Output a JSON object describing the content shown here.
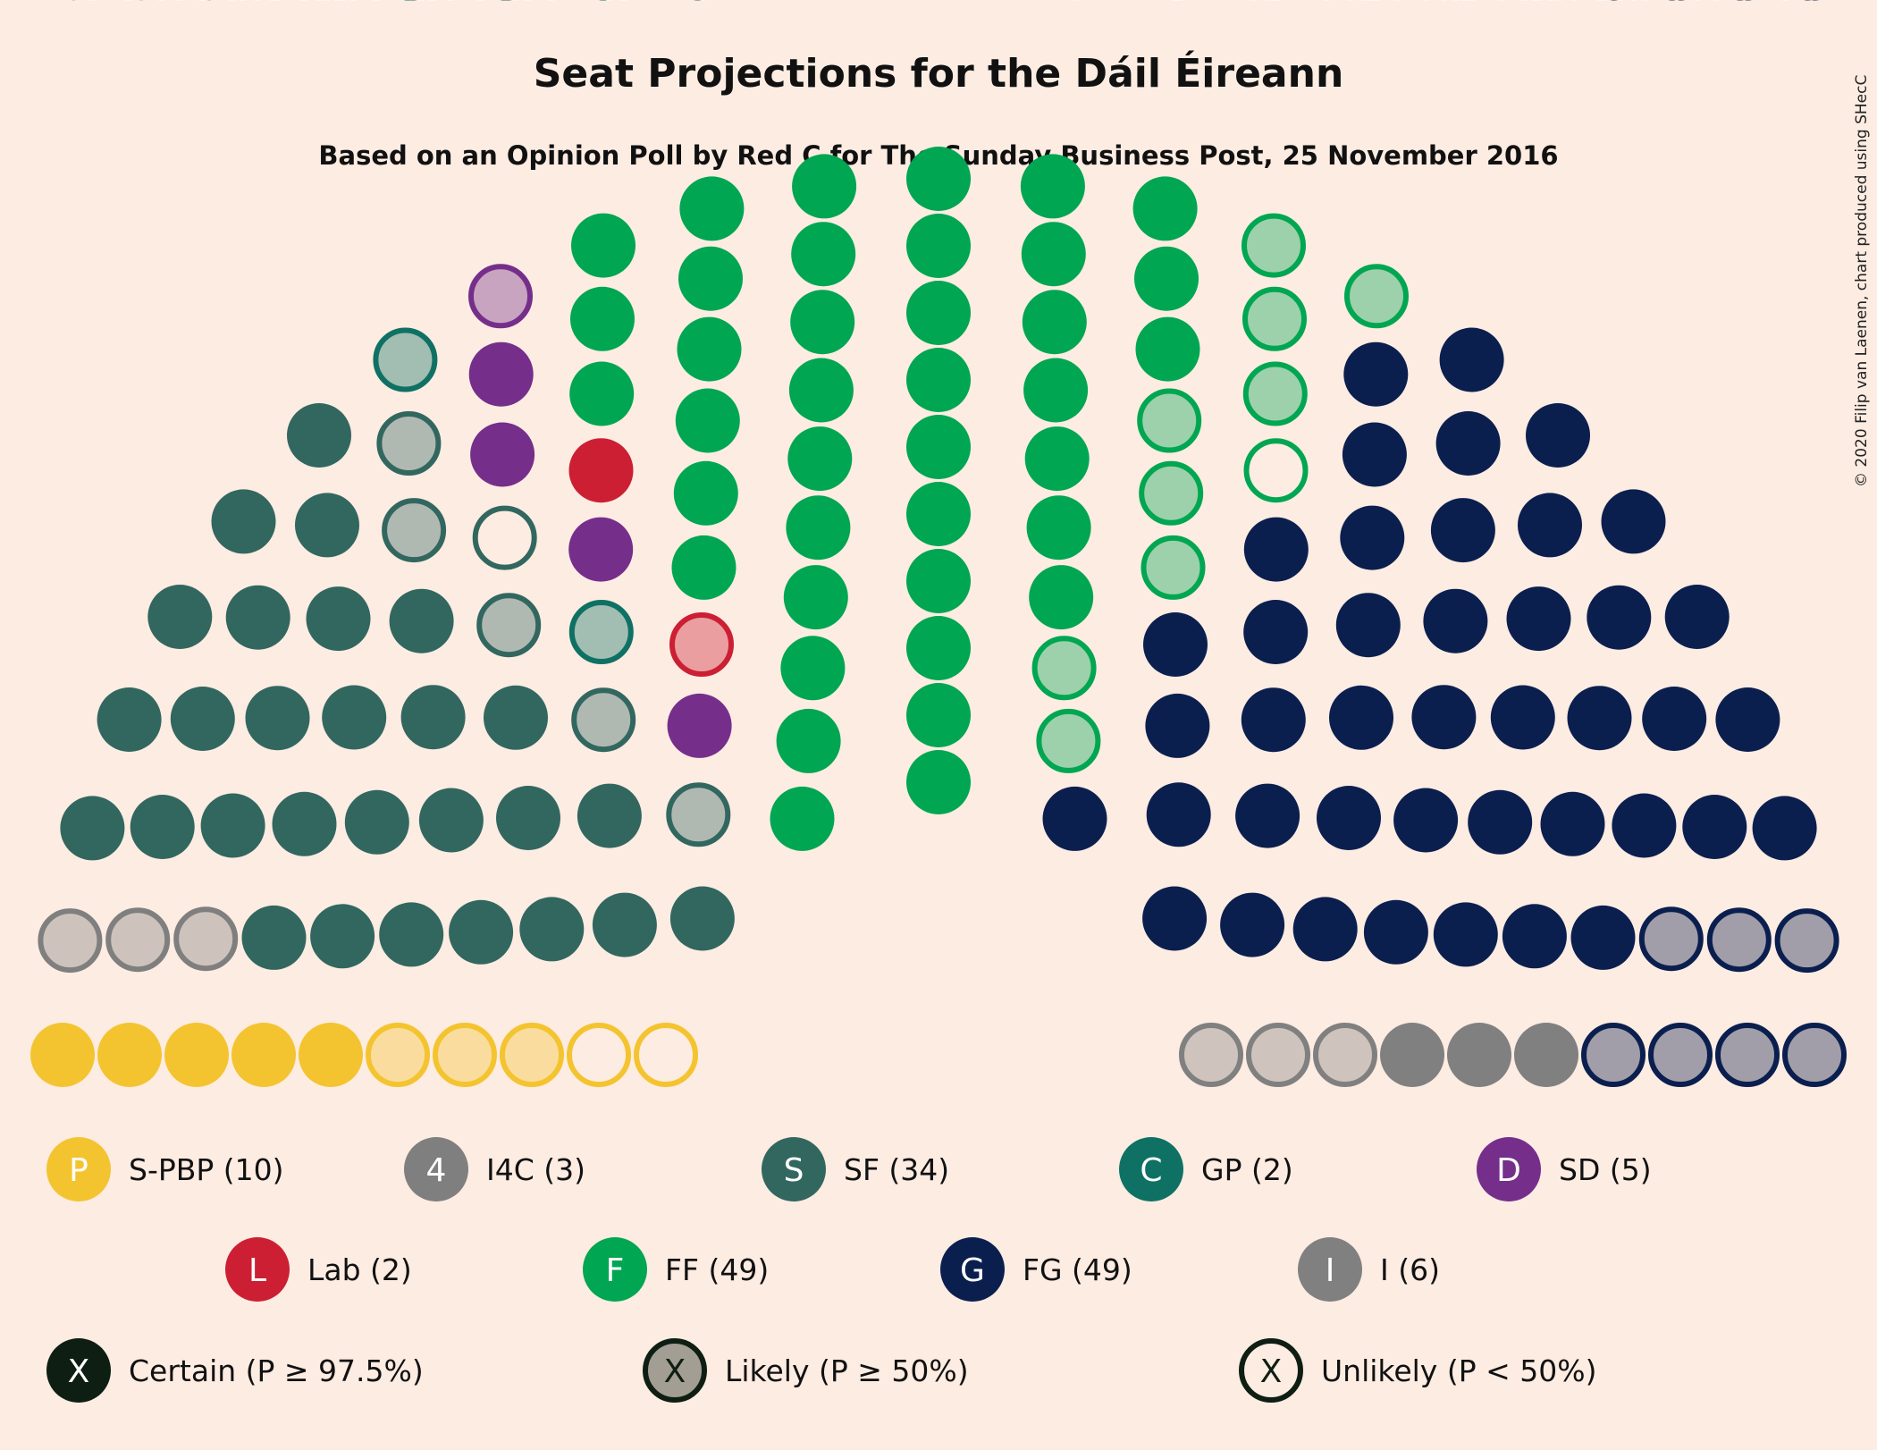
{
  "chart_data": {
    "type": "parliament",
    "title": "Seat Projections for the Dáil Éireann",
    "subtitle": "Based on an Opinion Poll by Red C for The Sunday Business Post, 25 November 2016",
    "copyright": "© 2020 Filip van Laenen, chart produced using SHecC",
    "total_seats": 160,
    "parties": [
      {
        "name": "S-PBP",
        "letter": "P",
        "seats": 10,
        "certain": 5,
        "likely": 3,
        "unlikely": 2,
        "color": "#F4C430",
        "legend_label": "S-PBP (10)"
      },
      {
        "name": "I4C",
        "letter": "4",
        "seats": 3,
        "certain": 0,
        "likely": 3,
        "unlikely": 0,
        "color": "#7F7F7F",
        "legend_label": "I4C (3)"
      },
      {
        "name": "SF",
        "letter": "S",
        "seats": 34,
        "certain": 28,
        "likely": 5,
        "unlikely": 1,
        "color": "#326760",
        "legend_label": "SF (34)"
      },
      {
        "name": "GP",
        "letter": "C",
        "seats": 2,
        "certain": 0,
        "likely": 2,
        "unlikely": 0,
        "color": "#0E7163",
        "legend_label": "GP (2)"
      },
      {
        "name": "SD",
        "letter": "D",
        "seats": 5,
        "certain": 4,
        "likely": 1,
        "unlikely": 0,
        "color": "#752F8B",
        "legend_label": "SD (5)"
      },
      {
        "name": "Lab",
        "letter": "L",
        "seats": 2,
        "certain": 1,
        "likely": 1,
        "unlikely": 0,
        "color": "#CC1F34",
        "legend_label": "Lab (2)"
      },
      {
        "name": "FF",
        "letter": "F",
        "seats": 49,
        "certain": 39,
        "likely": 9,
        "unlikely": 1,
        "color": "#00A651",
        "legend_label": "FF (49)"
      },
      {
        "name": "FG",
        "letter": "G",
        "seats": 49,
        "certain": 42,
        "likely": 7,
        "unlikely": 0,
        "color": "#0B1F4F",
        "legend_label": "FG (49)"
      },
      {
        "name": "I",
        "letter": "I",
        "seats": 6,
        "certain": 3,
        "likely": 3,
        "unlikely": 0,
        "color": "#808080",
        "legend_label": "I (6)"
      }
    ],
    "status_legend": [
      {
        "letter": "X",
        "label": "Certain (P ≥ 97.5%)",
        "kind": "certain"
      },
      {
        "letter": "X",
        "label": "Likely (P ≥ 50%)",
        "kind": "likely"
      },
      {
        "letter": "X",
        "label": "Unlikely (P < 50%)",
        "kind": "unlikely"
      }
    ]
  }
}
